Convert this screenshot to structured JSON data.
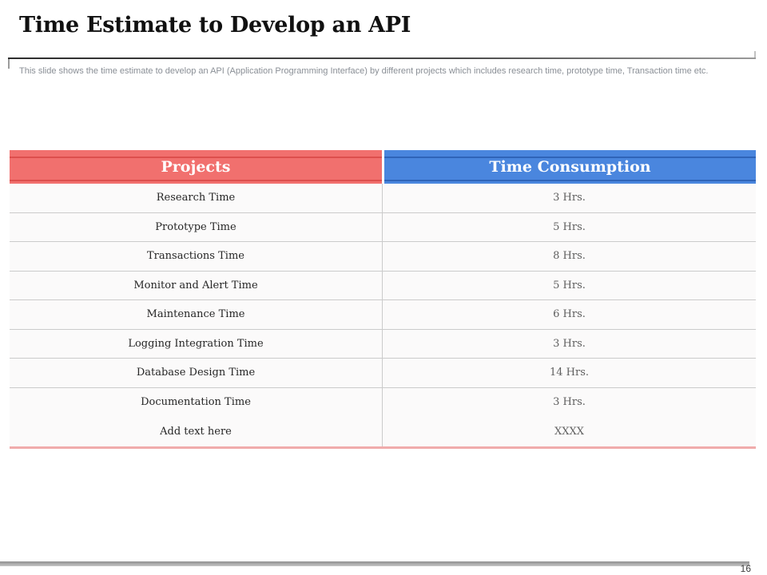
{
  "slide": {
    "title": "Time Estimate to Develop an API",
    "subtitle": "This slide shows the time estimate to develop an API (Application Programming Interface) by different projects which includes research time, prototype time, Transaction time etc.",
    "page_number": "16"
  },
  "table": {
    "columns": [
      {
        "label": "Projects",
        "header_color": "#f1706e",
        "accent_line_color": "#dd4f4d"
      },
      {
        "label": "Time Consumption",
        "header_color": "#4a86de",
        "accent_line_color": "#2f64b8"
      }
    ],
    "rows": [
      {
        "project": "Research Time",
        "time": "3 Hrs."
      },
      {
        "project": "Prototype Time",
        "time": "5 Hrs."
      },
      {
        "project": "Transactions Time",
        "time": "8 Hrs."
      },
      {
        "project": "Monitor and Alert Time",
        "time": "5 Hrs."
      },
      {
        "project": "Maintenance Time",
        "time": "6 Hrs."
      },
      {
        "project": "Logging Integration Time",
        "time": "3 Hrs."
      },
      {
        "project": "Database Design Time",
        "time": "14 Hrs."
      },
      {
        "project": "Documentation Time",
        "time": "3 Hrs."
      },
      {
        "project": "Add text here",
        "time": "XXXX"
      }
    ],
    "bottom_border_color": "#f0abab"
  }
}
